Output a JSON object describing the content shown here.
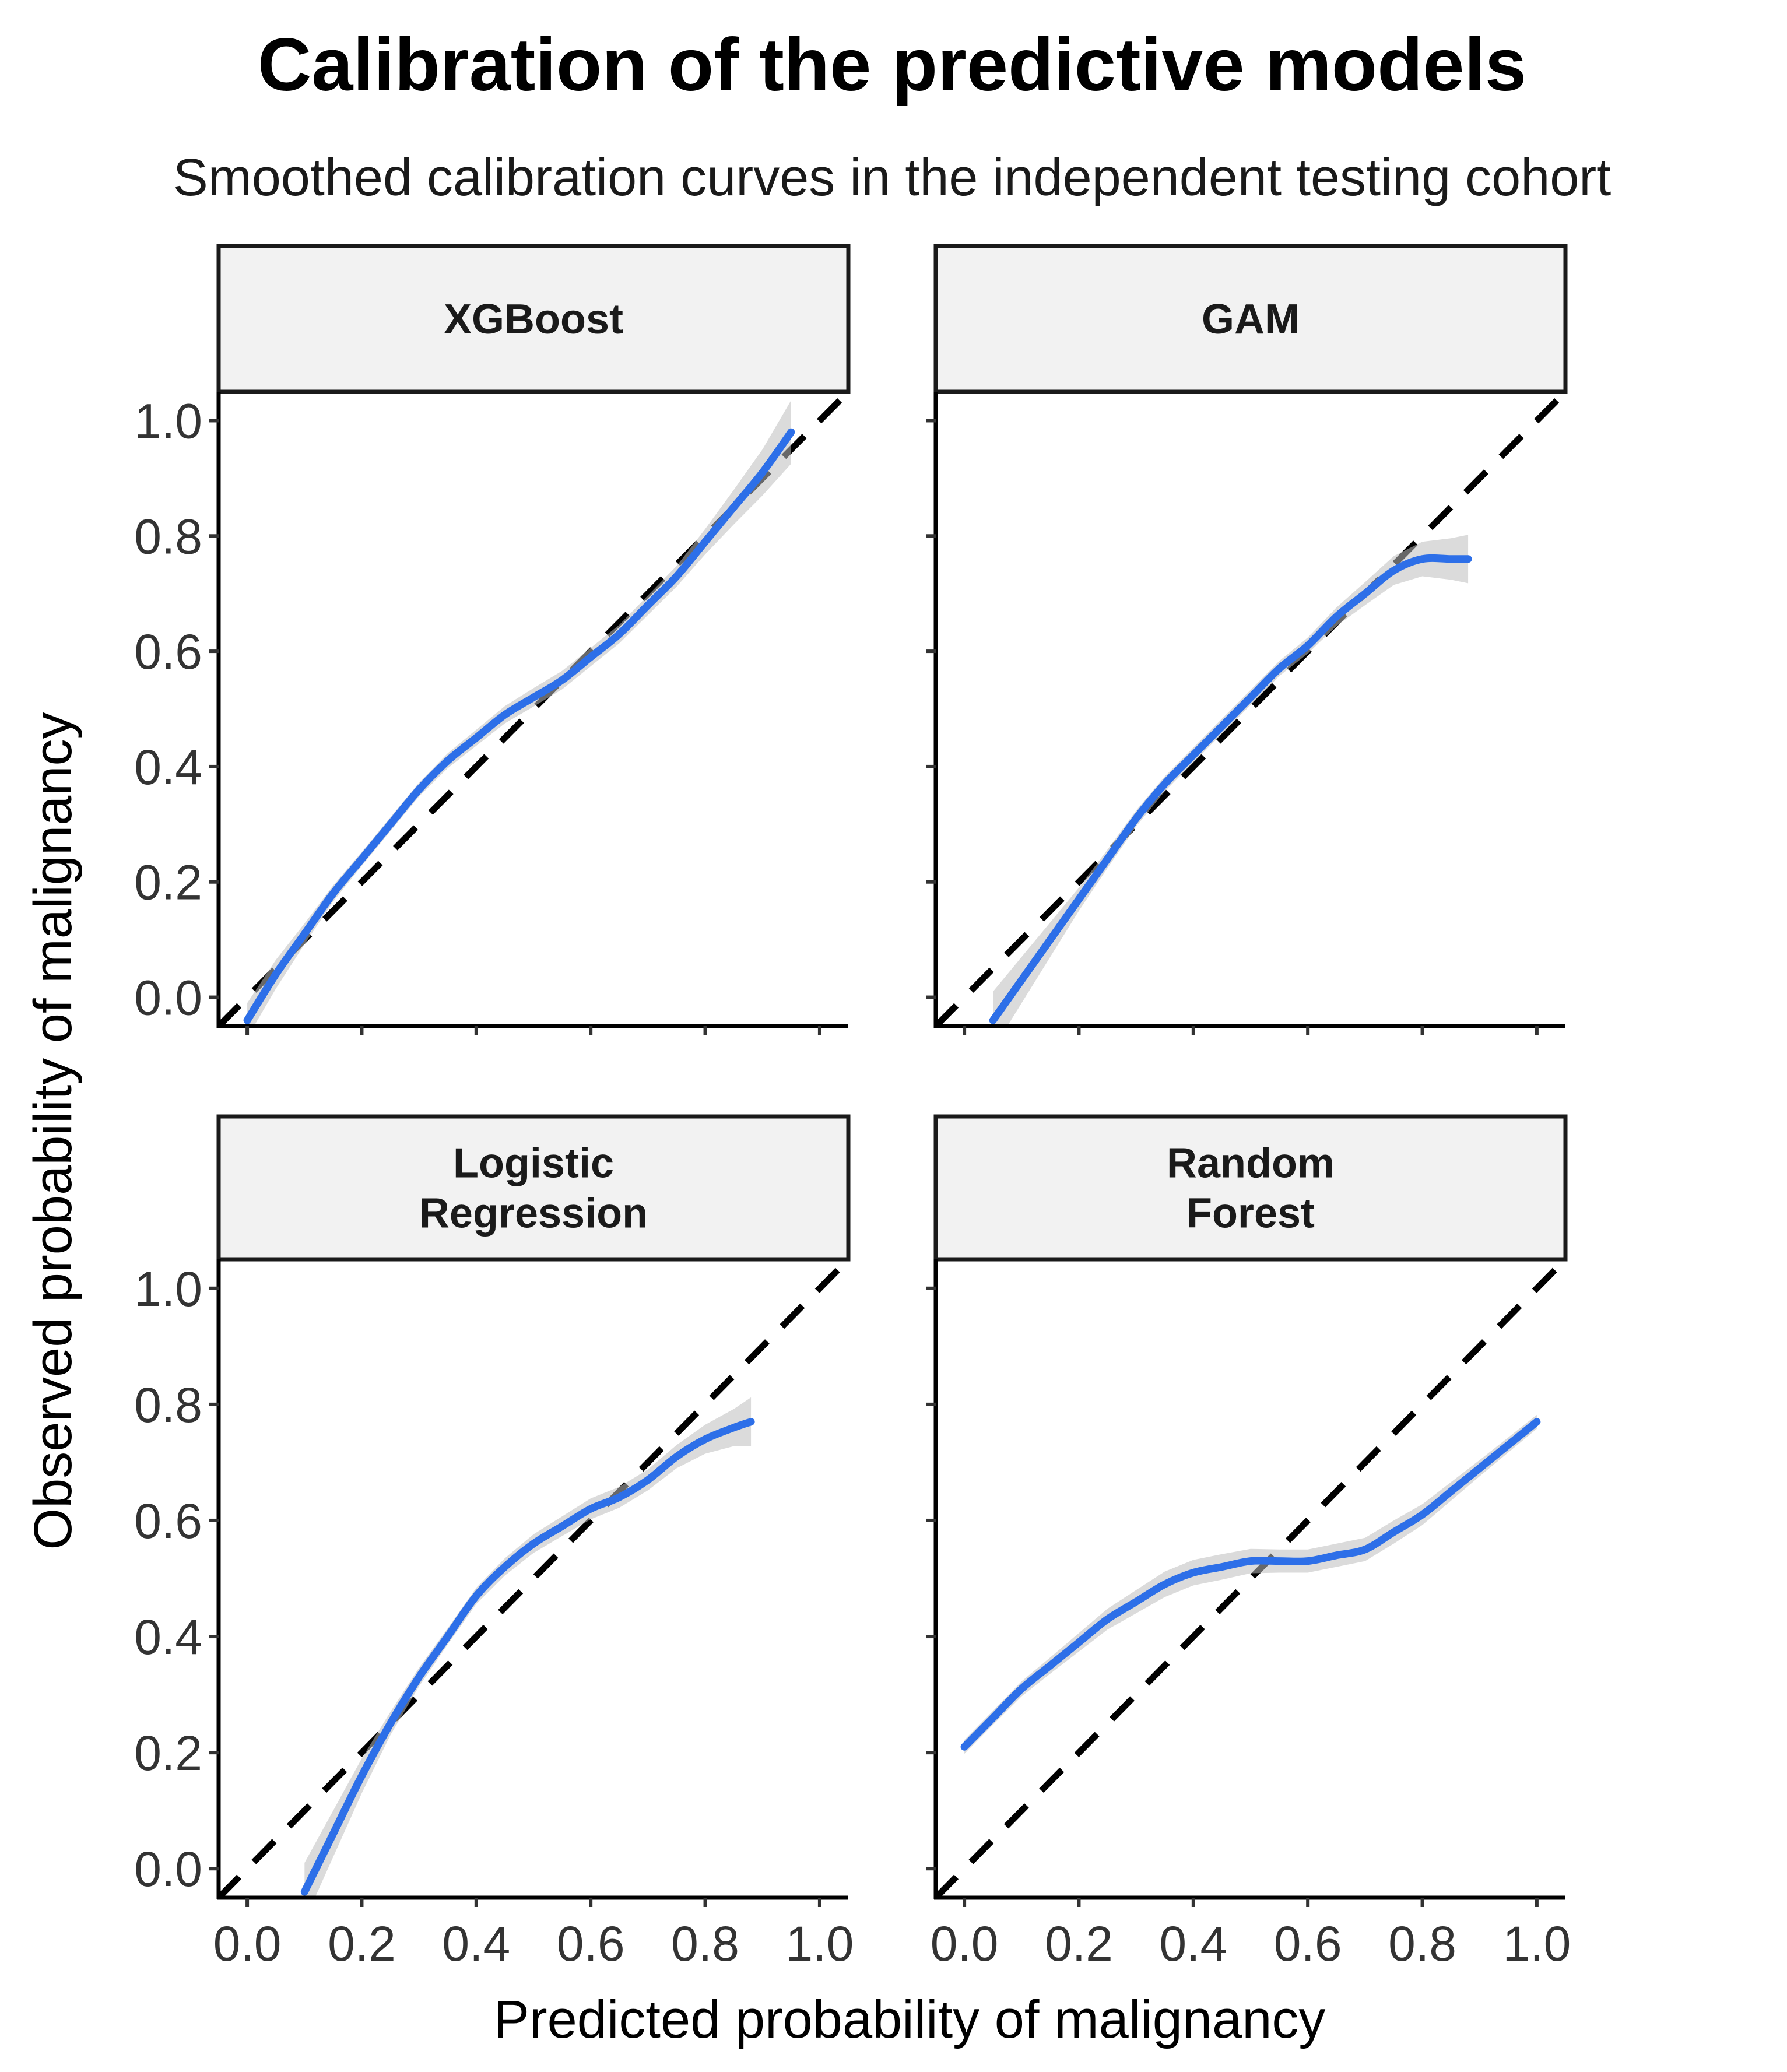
{
  "chart_data": {
    "type": "line",
    "title": "Calibration of the predictive models",
    "subtitle": "Smoothed calibration curves in the independent testing cohort",
    "xlabel": "Predicted probability of malignancy",
    "ylabel": "Observed probability of malignancy",
    "xlim": [
      -0.05,
      1.05
    ],
    "ylim": [
      -0.05,
      1.05
    ],
    "x_ticks": [
      "0.0",
      "0.2",
      "0.4",
      "0.6",
      "0.8",
      "1.0"
    ],
    "y_ticks": [
      "0.0",
      "0.2",
      "0.4",
      "0.6",
      "0.8",
      "1.0"
    ],
    "grid": false,
    "legend": "none",
    "colors": {
      "curve": "#2d6fe8",
      "band": "#bdbdbd",
      "reference": "#000000"
    },
    "panels": [
      {
        "name": "XGBoost",
        "strip_lines": [
          "XGBoost"
        ],
        "series": [
          {
            "x": [
              0.0,
              0.05,
              0.1,
              0.15,
              0.2,
              0.25,
              0.3,
              0.35,
              0.4,
              0.45,
              0.5,
              0.55,
              0.6,
              0.65,
              0.7,
              0.75,
              0.8,
              0.85,
              0.9,
              0.95
            ],
            "y": [
              -0.04,
              0.04,
              0.11,
              0.18,
              0.24,
              0.3,
              0.36,
              0.41,
              0.45,
              0.49,
              0.52,
              0.55,
              0.59,
              0.63,
              0.68,
              0.73,
              0.79,
              0.85,
              0.91,
              0.98
            ],
            "ci": [
              0.03,
              0.025,
              0.018,
              0.014,
              0.012,
              0.012,
              0.012,
              0.013,
              0.014,
              0.015,
              0.016,
              0.016,
              0.016,
              0.016,
              0.017,
              0.018,
              0.022,
              0.03,
              0.04,
              0.055
            ]
          }
        ]
      },
      {
        "name": "GAM",
        "strip_lines": [
          "GAM"
        ],
        "series": [
          {
            "x": [
              0.05,
              0.1,
              0.15,
              0.2,
              0.25,
              0.3,
              0.35,
              0.4,
              0.45,
              0.5,
              0.55,
              0.6,
              0.65,
              0.7,
              0.75,
              0.8,
              0.85,
              0.88
            ],
            "y": [
              -0.04,
              0.03,
              0.1,
              0.17,
              0.24,
              0.31,
              0.37,
              0.42,
              0.47,
              0.52,
              0.57,
              0.61,
              0.66,
              0.7,
              0.74,
              0.76,
              0.76,
              0.76
            ],
            "ci": [
              0.05,
              0.04,
              0.03,
              0.02,
              0.016,
              0.014,
              0.013,
              0.013,
              0.013,
              0.013,
              0.013,
              0.014,
              0.016,
              0.02,
              0.025,
              0.03,
              0.036,
              0.042
            ]
          }
        ]
      },
      {
        "name": "Logistic Regression",
        "strip_lines": [
          "Logistic",
          "Regression"
        ],
        "series": [
          {
            "x": [
              0.1,
              0.15,
              0.2,
              0.25,
              0.3,
              0.35,
              0.4,
              0.45,
              0.5,
              0.55,
              0.6,
              0.65,
              0.7,
              0.75,
              0.8,
              0.85,
              0.88
            ],
            "y": [
              -0.04,
              0.06,
              0.16,
              0.25,
              0.33,
              0.4,
              0.47,
              0.52,
              0.56,
              0.59,
              0.62,
              0.64,
              0.67,
              0.71,
              0.74,
              0.76,
              0.77
            ],
            "ci": [
              0.05,
              0.04,
              0.03,
              0.02,
              0.016,
              0.014,
              0.014,
              0.015,
              0.016,
              0.017,
              0.018,
              0.018,
              0.018,
              0.02,
              0.025,
              0.032,
              0.042
            ]
          }
        ]
      },
      {
        "name": "Random Forest",
        "strip_lines": [
          "Random",
          "Forest"
        ],
        "series": [
          {
            "x": [
              0.0,
              0.05,
              0.1,
              0.15,
              0.2,
              0.25,
              0.3,
              0.35,
              0.4,
              0.45,
              0.5,
              0.55,
              0.6,
              0.65,
              0.7,
              0.75,
              0.8,
              0.85,
              0.9,
              0.95,
              1.0
            ],
            "y": [
              0.21,
              0.26,
              0.31,
              0.35,
              0.39,
              0.43,
              0.46,
              0.49,
              0.51,
              0.52,
              0.53,
              0.53,
              0.53,
              0.54,
              0.55,
              0.58,
              0.61,
              0.65,
              0.69,
              0.73,
              0.77
            ],
            "ci": [
              0.012,
              0.012,
              0.013,
              0.014,
              0.016,
              0.018,
              0.02,
              0.022,
              0.022,
              0.022,
              0.021,
              0.02,
              0.02,
              0.02,
              0.02,
              0.02,
              0.018,
              0.016,
              0.014,
              0.013,
              0.012
            ]
          }
        ]
      }
    ]
  }
}
